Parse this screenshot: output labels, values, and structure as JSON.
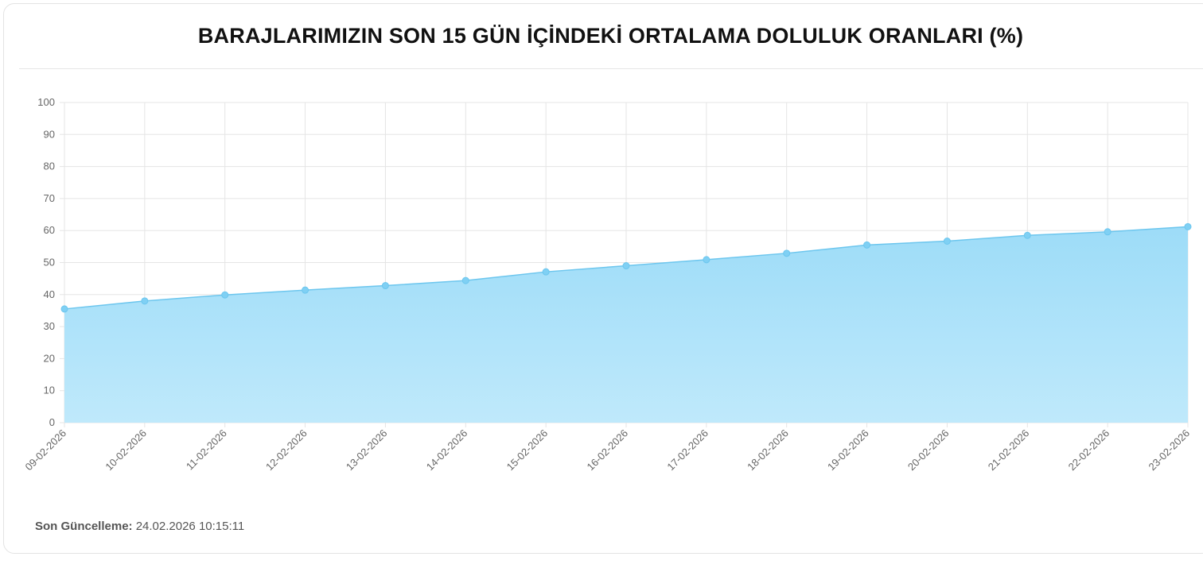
{
  "title": "BARAJLARIMIZIN SON 15 GÜN İÇİNDEKİ ORTALAMA DOLULUK ORANLARI (%)",
  "footer": {
    "label": "Son Güncelleme:",
    "value": "24.02.2026 10:15:11"
  },
  "colors": {
    "line": "#6cc6ee",
    "fill_top": "#9ddcf8",
    "fill_bottom": "#bfe9fb",
    "point": "#7fd0f4",
    "grid": "#e5e5e5"
  },
  "chart_data": {
    "type": "area",
    "title": "BARAJLARIMIZIN SON 15 GÜN İÇİNDEKİ ORTALAMA DOLULUK ORANLARI (%)",
    "categories": [
      "09-02-2026",
      "10-02-2026",
      "11-02-2026",
      "12-02-2026",
      "13-02-2026",
      "14-02-2026",
      "15-02-2026",
      "16-02-2026",
      "17-02-2026",
      "18-02-2026",
      "19-02-2026",
      "20-02-2026",
      "21-02-2026",
      "22-02-2026",
      "23-02-2026"
    ],
    "values": [
      35.5,
      38.0,
      39.9,
      41.4,
      42.8,
      44.4,
      47.1,
      49.0,
      50.9,
      52.9,
      55.5,
      56.7,
      58.5,
      59.6,
      61.2
    ],
    "yticks": [
      "0",
      "10",
      "20",
      "30",
      "40",
      "50",
      "60",
      "70",
      "80",
      "90",
      "100"
    ],
    "ylim": [
      0,
      100
    ],
    "grid": true,
    "legend": "none"
  }
}
